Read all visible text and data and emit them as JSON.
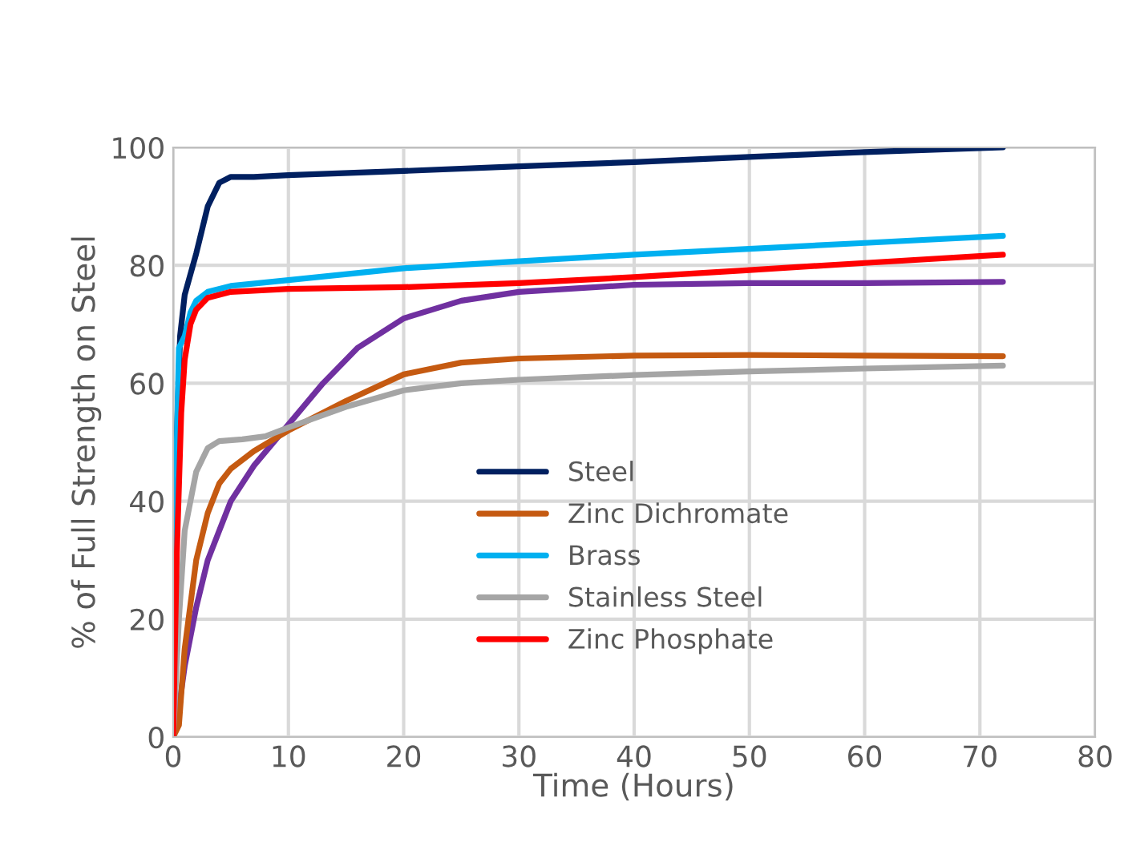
{
  "chart_data": {
    "type": "line",
    "xlabel": "Time (Hours)",
    "ylabel": "% of Full Strength on Steel",
    "xlim": [
      0,
      80
    ],
    "xticks": [
      0,
      10,
      20,
      30,
      40,
      50,
      60,
      70,
      80
    ],
    "ylim": [
      0,
      100
    ],
    "yticks": [
      0,
      20,
      40,
      60,
      80,
      100
    ],
    "grid": true,
    "legend": "lower center",
    "marker": "none",
    "line_style": "solid",
    "series": [
      {
        "name": "Steel",
        "color": "#002060",
        "x": [
          0,
          0.3,
          0.6,
          1,
          2,
          3,
          4,
          5,
          7,
          10,
          20,
          30,
          40,
          50,
          60,
          72
        ],
        "values": [
          0,
          50,
          68,
          75,
          82,
          90,
          94,
          95,
          95,
          95.3,
          96,
          96.8,
          97.5,
          98.4,
          99.2,
          100
        ]
      },
      {
        "color": "#7030a0",
        "x": [
          0,
          0.5,
          1,
          2,
          3,
          4,
          5,
          7,
          10,
          13,
          16,
          20,
          25,
          30,
          40,
          50,
          60,
          72
        ],
        "values": [
          0,
          5,
          12,
          22,
          30,
          35,
          40,
          46,
          53,
          60,
          66,
          71,
          74,
          75.5,
          76.7,
          77,
          77,
          77.2
        ]
      },
      {
        "name": "Zinc Dichromate",
        "color": "#c55a11",
        "x": [
          0,
          0.5,
          1,
          2,
          3,
          4,
          5,
          7,
          10,
          15,
          20,
          25,
          30,
          40,
          50,
          60,
          72
        ],
        "values": [
          0,
          2,
          15,
          30,
          38,
          43,
          45.5,
          48.5,
          52,
          57,
          61.5,
          63.5,
          64.2,
          64.7,
          64.8,
          64.7,
          64.6
        ]
      },
      {
        "name": "Brass",
        "color": "#00b0f0",
        "x": [
          0,
          0.2,
          0.5,
          1,
          1.5,
          2,
          3,
          5,
          10,
          20,
          30,
          40,
          50,
          60,
          72
        ],
        "values": [
          0,
          40,
          66,
          68,
          72,
          74,
          75.5,
          76.5,
          77.5,
          79.5,
          80.7,
          81.8,
          82.8,
          83.8,
          85
        ]
      },
      {
        "name": "Stainless Steel",
        "color": "#a5a5a5",
        "x": [
          0,
          0.5,
          1,
          2,
          3,
          4,
          6,
          8,
          10,
          15,
          20,
          25,
          30,
          40,
          50,
          60,
          72
        ],
        "values": [
          0,
          20,
          35,
          45,
          49,
          50.2,
          50.5,
          51,
          52.5,
          56,
          58.8,
          60,
          60.6,
          61.4,
          62,
          62.5,
          63
        ]
      },
      {
        "name": "Zinc Phosphate",
        "color": "#ff0000",
        "x": [
          0,
          0.3,
          0.7,
          1,
          1.5,
          2,
          3,
          5,
          10,
          20,
          30,
          40,
          50,
          60,
          72
        ],
        "values": [
          0,
          30,
          55,
          64,
          70,
          72.5,
          74.5,
          75.5,
          76,
          76.3,
          77,
          78,
          79.2,
          80.4,
          81.8
        ]
      }
    ]
  }
}
